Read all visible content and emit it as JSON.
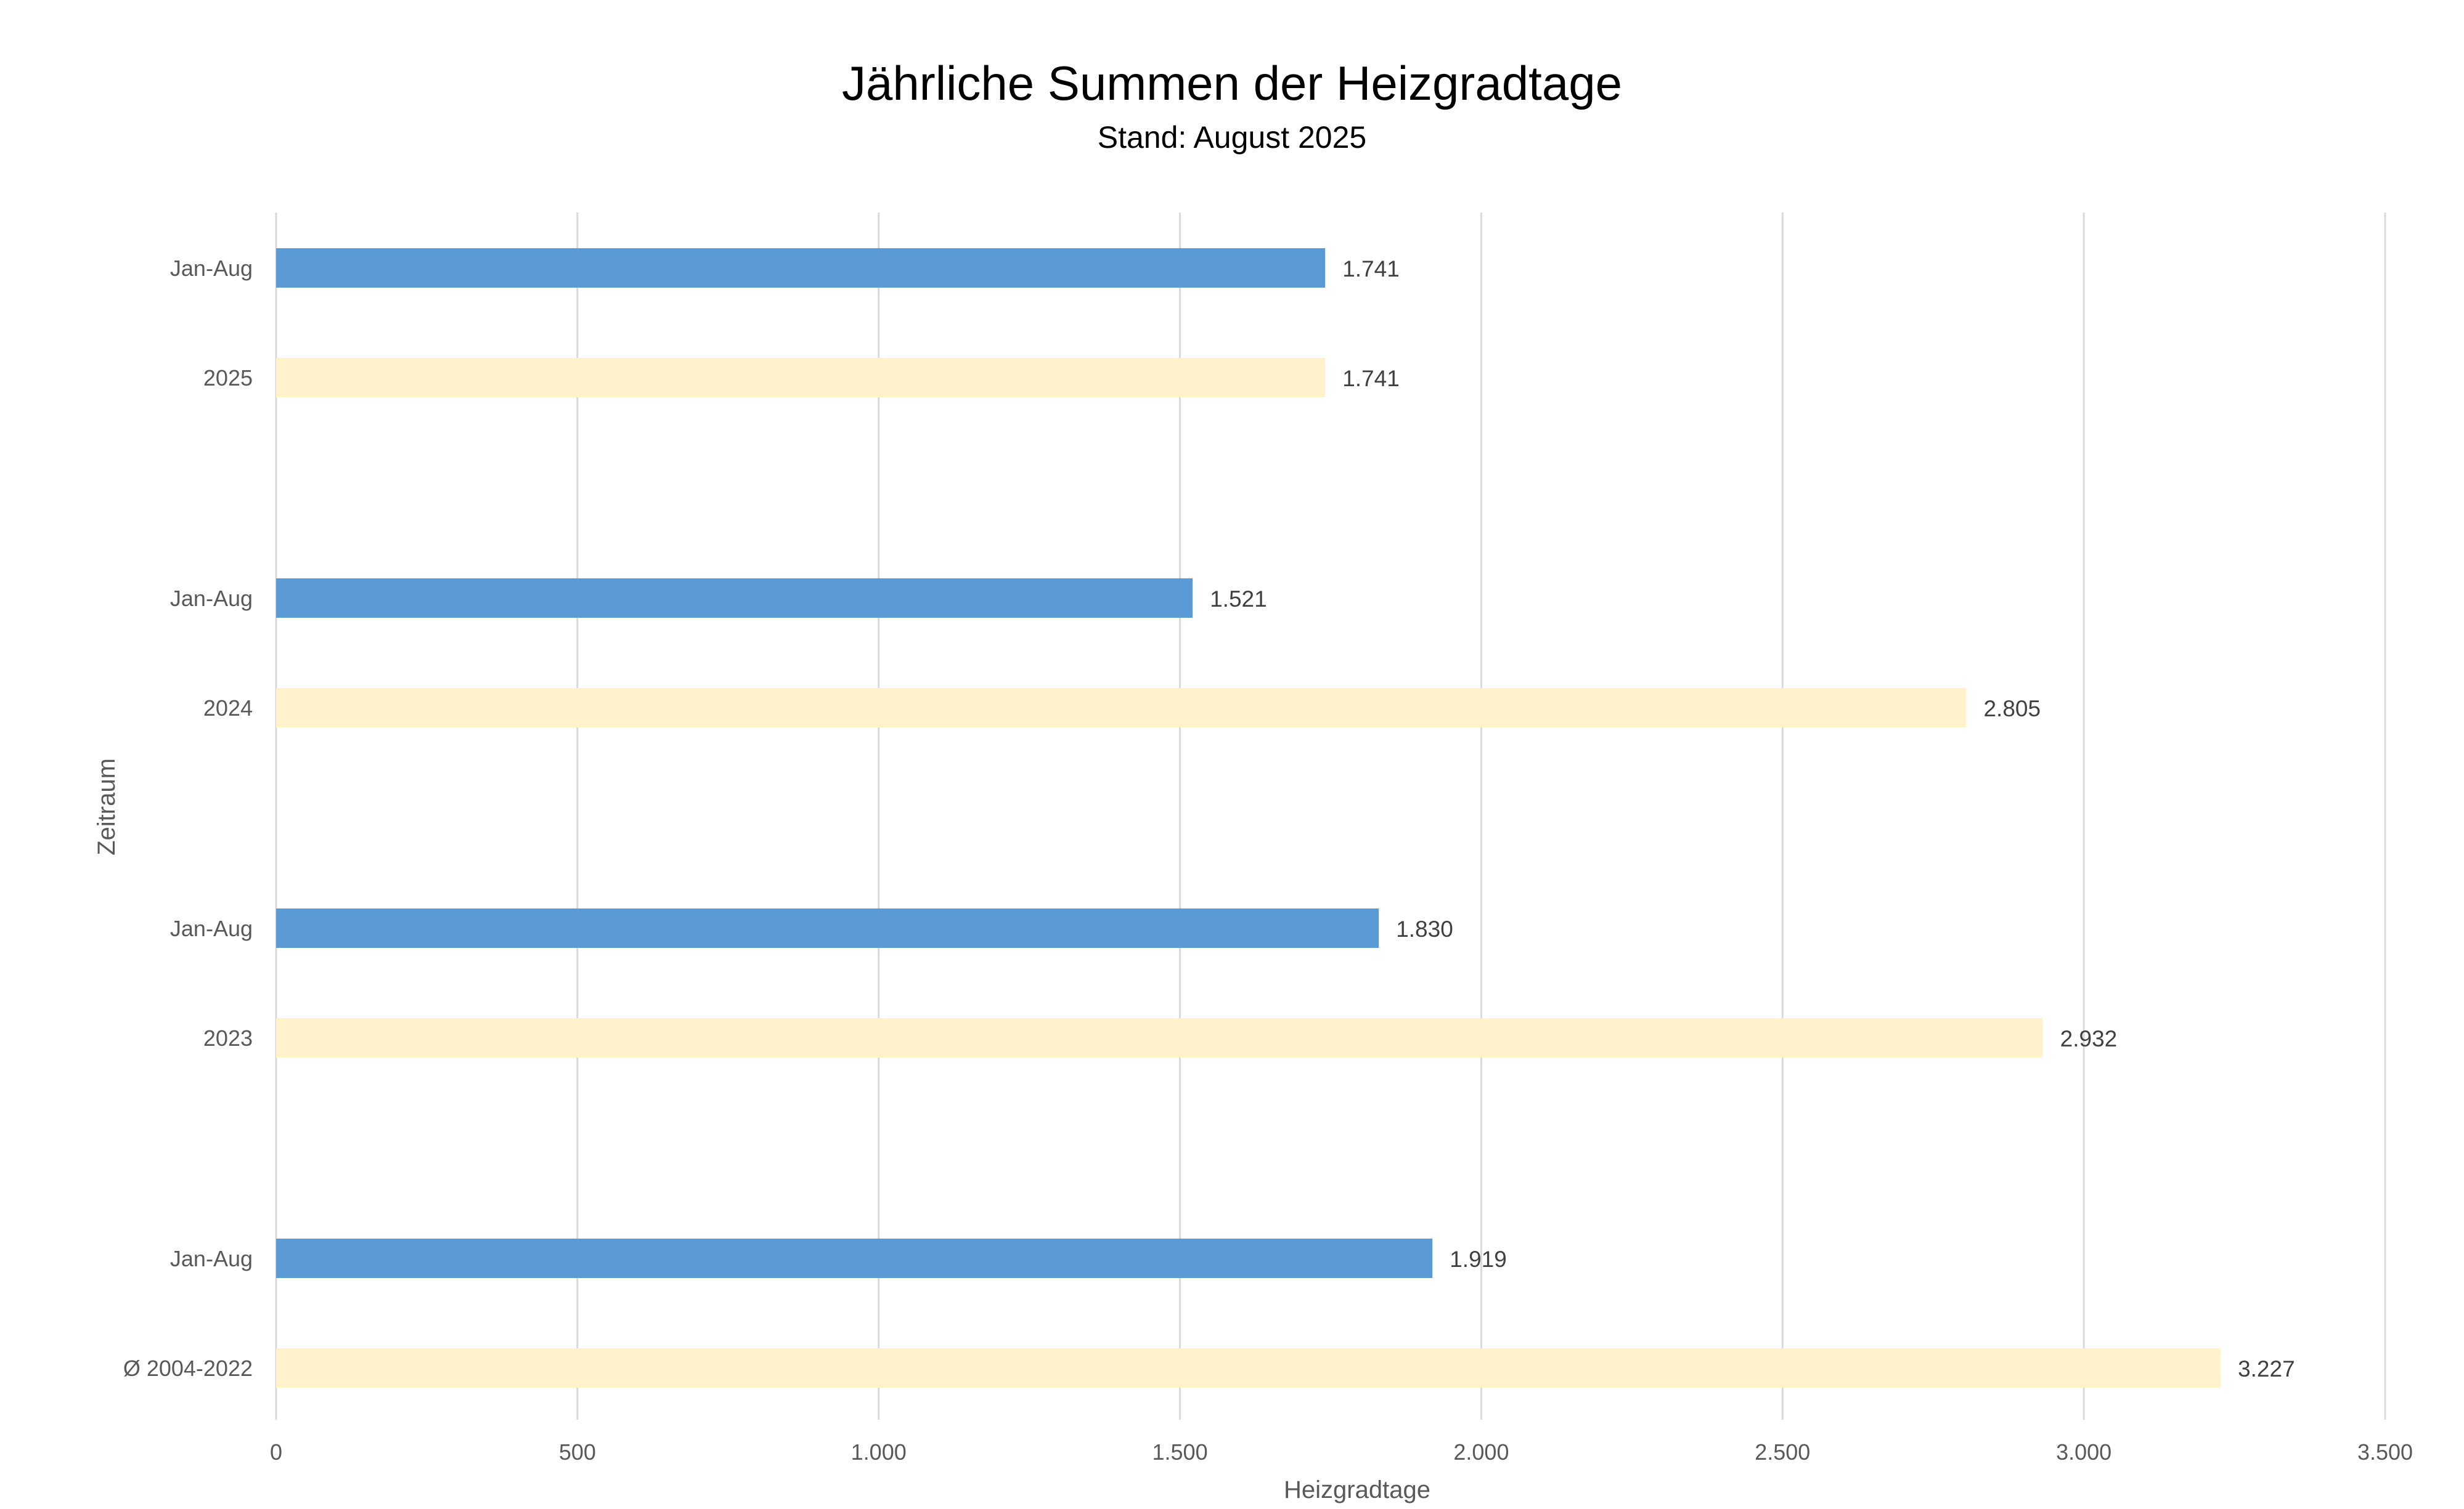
{
  "chart_data": {
    "type": "bar",
    "orientation": "horizontal",
    "title": "Jährliche Summen der Heizgradtage",
    "subtitle": "Stand: August 2025",
    "xlabel": "Heizgradtage",
    "ylabel": "Zeitraum",
    "xlim": [
      0,
      3500
    ],
    "x_ticks": [
      0,
      500,
      1000,
      1500,
      2000,
      2500,
      3000,
      3500
    ],
    "x_tick_labels": [
      "0",
      "500",
      "1.000",
      "1.500",
      "2.000",
      "2.500",
      "3.000",
      "3.500"
    ],
    "grid": true,
    "legend": "none",
    "groups": [
      {
        "bars": [
          {
            "label": "Jan-Aug",
            "value": 1741,
            "value_label": "1.741",
            "color": "#5b9bd5"
          },
          {
            "label": "2025",
            "value": 1741,
            "value_label": "1.741",
            "color": "#fff2cc"
          }
        ]
      },
      {
        "bars": [
          {
            "label": "Jan-Aug",
            "value": 1521,
            "value_label": "1.521",
            "color": "#5b9bd5"
          },
          {
            "label": "2024",
            "value": 2805,
            "value_label": "2.805",
            "color": "#fff2cc"
          }
        ]
      },
      {
        "bars": [
          {
            "label": "Jan-Aug",
            "value": 1830,
            "value_label": "1.830",
            "color": "#5b9bd5"
          },
          {
            "label": "2023",
            "value": 2932,
            "value_label": "2.932",
            "color": "#fff2cc"
          }
        ]
      },
      {
        "bars": [
          {
            "label": "Jan-Aug",
            "value": 1919,
            "value_label": "1.919",
            "color": "#5b9bd5"
          },
          {
            "label": "Ø 2004-2022",
            "value": 3227,
            "value_label": "3.227",
            "color": "#fff2cc"
          }
        ]
      }
    ]
  }
}
